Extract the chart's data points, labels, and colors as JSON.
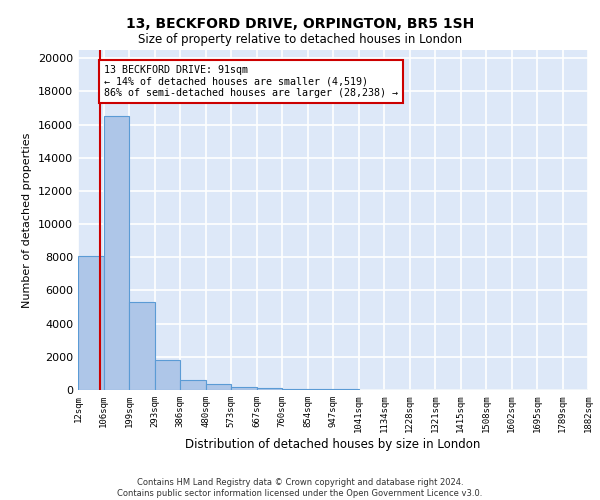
{
  "title1": "13, BECKFORD DRIVE, ORPINGTON, BR5 1SH",
  "title2": "Size of property relative to detached houses in London",
  "xlabel": "Distribution of detached houses by size in London",
  "ylabel": "Number of detached properties",
  "bin_edges": [
    12,
    106,
    199,
    293,
    386,
    480,
    573,
    667,
    760,
    854,
    947,
    1041,
    1134,
    1228,
    1321,
    1415,
    1508,
    1602,
    1695,
    1789,
    1882
  ],
  "bar_heights": [
    8050,
    16500,
    5300,
    1800,
    620,
    350,
    210,
    130,
    90,
    60,
    40,
    30,
    20,
    15,
    10,
    8,
    5,
    4,
    3,
    2
  ],
  "bar_color": "#aec6e8",
  "bar_edge_color": "#5b9bd5",
  "property_size": 91,
  "property_line_color": "#cc0000",
  "annotation_line1": "13 BECKFORD DRIVE: 91sqm",
  "annotation_line2": "← 14% of detached houses are smaller (4,519)",
  "annotation_line3": "86% of semi-detached houses are larger (28,238) →",
  "annotation_box_color": "#cc0000",
  "background_color": "#dde8f8",
  "grid_color": "#ffffff",
  "ylim": [
    0,
    20500
  ],
  "yticks": [
    0,
    2000,
    4000,
    6000,
    8000,
    10000,
    12000,
    14000,
    16000,
    18000,
    20000
  ],
  "footer_line1": "Contains HM Land Registry data © Crown copyright and database right 2024.",
  "footer_line2": "Contains public sector information licensed under the Open Government Licence v3.0."
}
